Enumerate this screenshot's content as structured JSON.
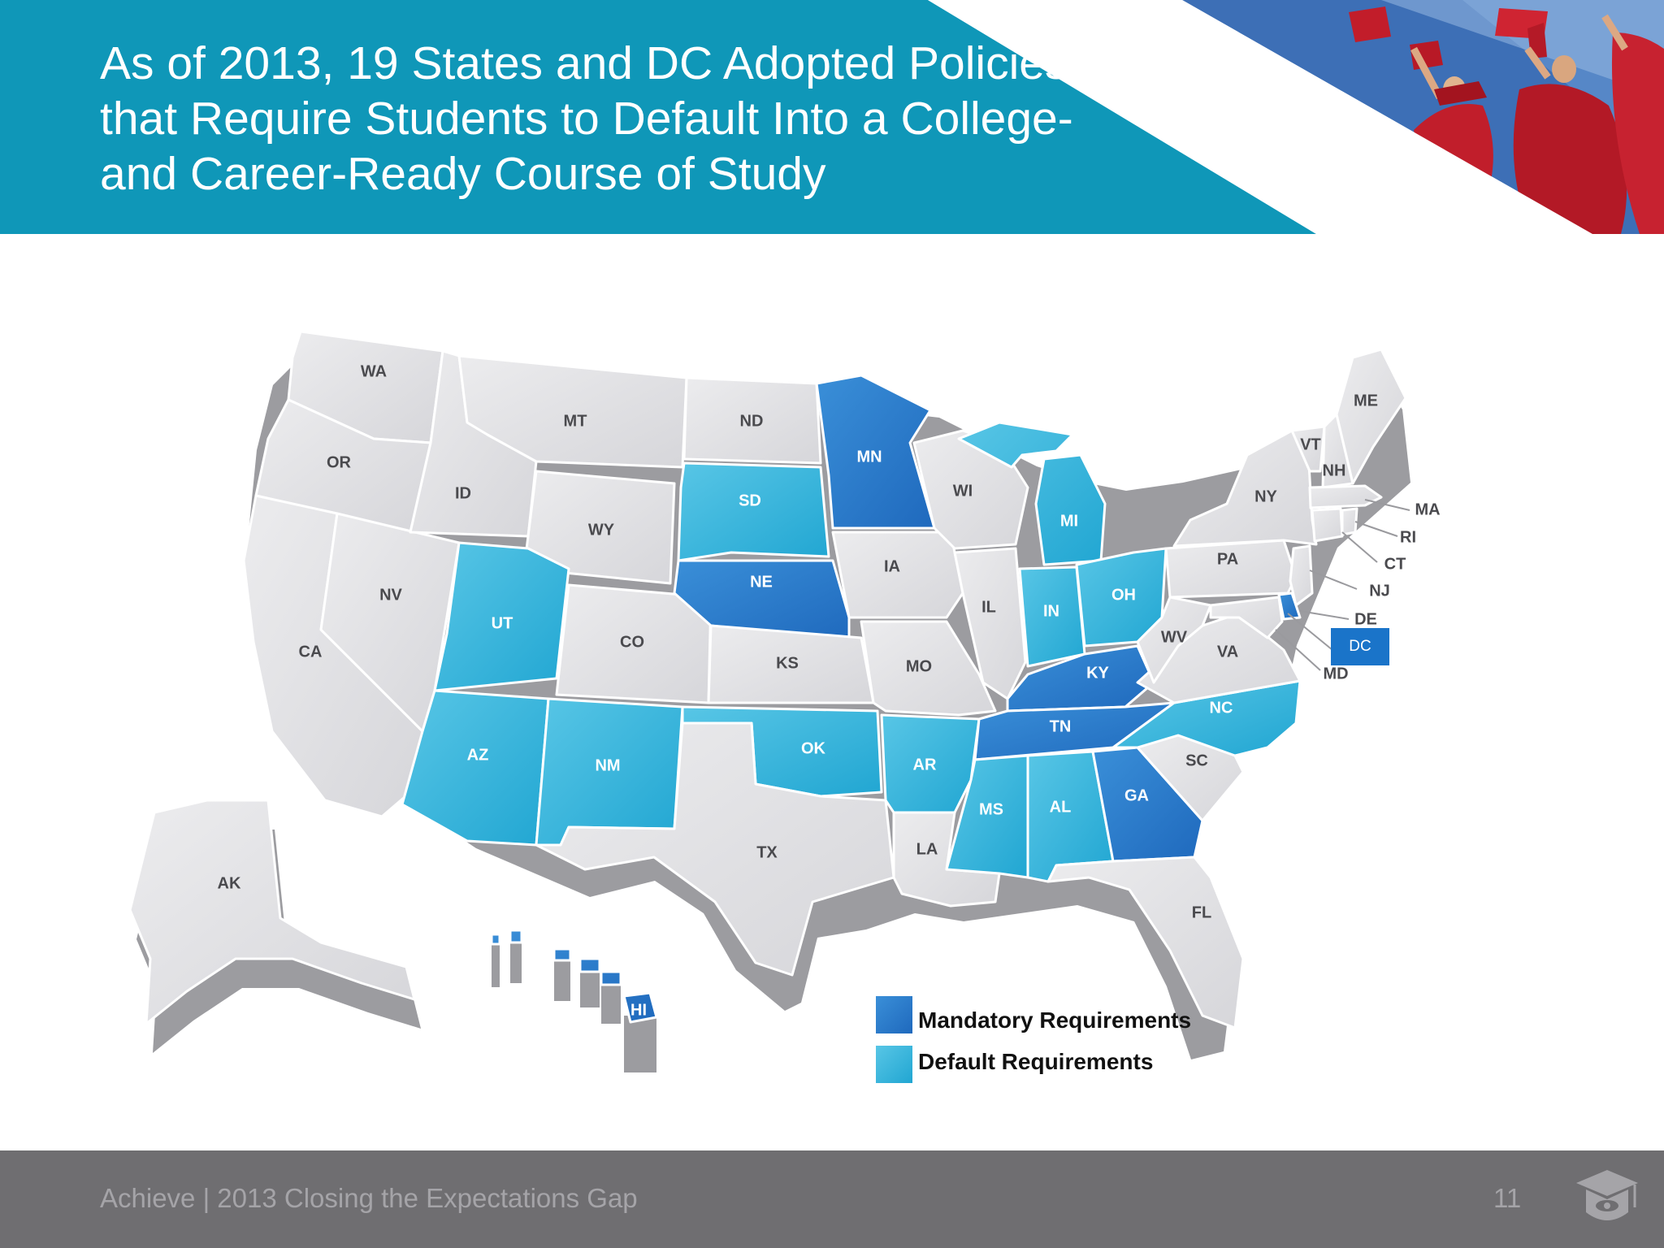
{
  "slide": {
    "title": "As of 2013, 19 States and DC Adopted Policies that Require Students to Default Into a College- and Career-Ready Course of Study",
    "footer": "Achieve | 2013 Closing the Expectations Gap",
    "page_number": "11"
  },
  "colors": {
    "banner": "#0f97b8",
    "mandatory": "#2f7fcc",
    "default": "#2fb3d9",
    "none": "#e2e2e5",
    "dc_box": "#1a74c9"
  },
  "map": {
    "labels": {
      "WA": "WA",
      "OR": "OR",
      "CA": "CA",
      "NV": "NV",
      "ID": "ID",
      "MT": "MT",
      "WY": "WY",
      "UT": "UT",
      "AZ": "AZ",
      "CO": "CO",
      "NM": "NM",
      "ND": "ND",
      "SD": "SD",
      "NE": "NE",
      "KS": "KS",
      "OK": "OK",
      "TX": "TX",
      "MN": "MN",
      "IA": "IA",
      "MO": "MO",
      "AR": "AR",
      "LA": "LA",
      "WI": "WI",
      "IL": "IL",
      "MI": "MI",
      "IN": "IN",
      "OH": "OH",
      "KY": "KY",
      "TN": "TN",
      "MS": "MS",
      "AL": "AL",
      "GA": "GA",
      "FL": "FL",
      "SC": "SC",
      "NC": "NC",
      "VA": "VA",
      "WV": "WV",
      "PA": "PA",
      "NY": "NY",
      "ME": "ME",
      "VT": "VT",
      "NH": "NH",
      "MA": "MA",
      "RI": "RI",
      "CT": "CT",
      "NJ": "NJ",
      "DE": "DE",
      "MD": "MD",
      "DC": "DC",
      "AK": "AK",
      "HI": "HI"
    },
    "mandatory_states": [
      "MN",
      "NE",
      "KY",
      "TN",
      "GA",
      "DE",
      "DC",
      "HI"
    ],
    "default_states": [
      "SD",
      "UT",
      "AZ",
      "NM",
      "OK",
      "AR",
      "MS",
      "AL",
      "IN",
      "OH",
      "MI",
      "NC"
    ]
  },
  "legend": {
    "mandatory_label": "Mandatory Requirements",
    "default_label": "Default Requirements"
  },
  "icons": [
    "graduation-cap-icon"
  ]
}
